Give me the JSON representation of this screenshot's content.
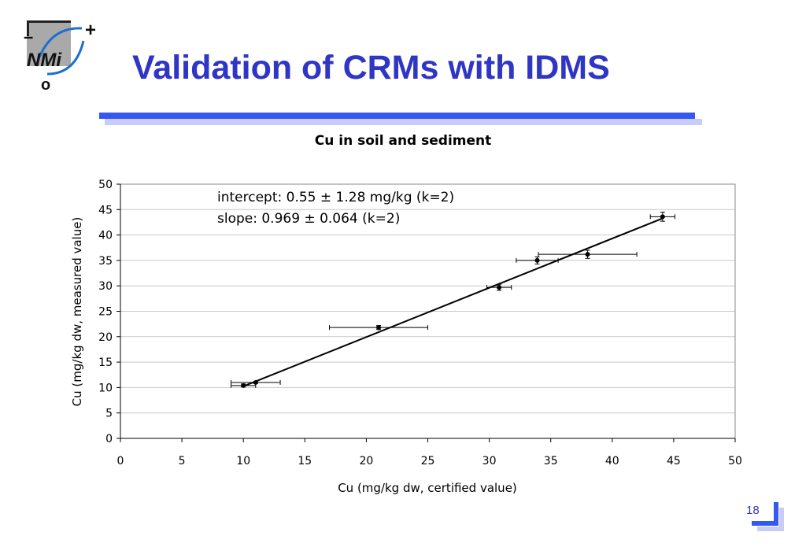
{
  "logo": {
    "text": "NMi",
    "plus": "+",
    "minus": "–",
    "o": "o"
  },
  "slide": {
    "title": "Validation of CRMs with IDMS",
    "page_number": "18"
  },
  "colors": {
    "title": "#2f35c4",
    "rule": "#3657f0",
    "rule_shadow": "#c9ccf7",
    "logo_arc": "#1f6fd1"
  },
  "chart_data": {
    "type": "scatter",
    "title": "Cu in soil and sediment",
    "xlabel": "Cu (mg/kg dw, certified value)",
    "ylabel": "Cu (mg/kg dw, measured value)",
    "xlim": [
      0,
      50
    ],
    "ylim": [
      0,
      50
    ],
    "xticks": [
      0,
      5,
      10,
      15,
      20,
      25,
      30,
      35,
      40,
      45,
      50
    ],
    "yticks": [
      0,
      5,
      10,
      15,
      20,
      25,
      30,
      35,
      40,
      45,
      50
    ],
    "grid": "horizontal",
    "points": [
      {
        "x": 10.0,
        "y": 10.4,
        "xerr": 1.0,
        "yerr": 0.3
      },
      {
        "x": 11.0,
        "y": 11.0,
        "xerr": 2.0,
        "yerr": 0.2
      },
      {
        "x": 21.0,
        "y": 21.8,
        "xerr": 4.0,
        "yerr": 0.4
      },
      {
        "x": 30.8,
        "y": 29.7,
        "xerr": 1.0,
        "yerr": 0.6
      },
      {
        "x": 33.9,
        "y": 35.0,
        "xerr": 1.7,
        "yerr": 0.7
      },
      {
        "x": 38.0,
        "y": 36.2,
        "xerr": 4.0,
        "yerr": 0.8
      },
      {
        "x": 44.1,
        "y": 43.6,
        "xerr": 1.0,
        "yerr": 0.9
      }
    ],
    "fit_line": {
      "x": [
        10,
        44.1
      ],
      "intercept": 0.55,
      "slope": 0.969
    },
    "annotations": [
      "intercept: 0.55 ± 1.28 mg/kg (k=2)",
      "slope: 0.969 ± 0.064 (k=2)"
    ]
  }
}
